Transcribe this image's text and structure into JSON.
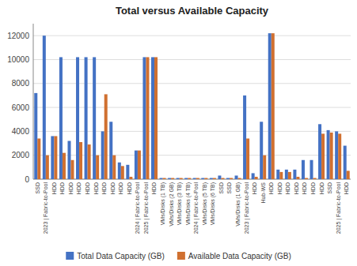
{
  "chart_data": {
    "type": "bar",
    "title": "Total versus Available Capacity",
    "categories": [
      "SSD",
      "2023 | Fabric-to-Pool",
      "HDD",
      "HDD",
      "HDD",
      "HDD",
      "HDD",
      "HDD",
      "HDD",
      "HDD",
      "HDD",
      "HDD",
      "2024 | Fabric-to-Pool",
      "2025 | Fabric-to-Pool",
      "HDD",
      "VMs/Disks (1 TB)",
      "VMs/Disks (2 GB)",
      "VMs/Disks (3 TB)",
      "VMs/Disks (4 TB)",
      "2024 | Fabric-to-Pool",
      "VMs/Disks (5 TB)",
      "VMs/Disks (6 TB)",
      "SSD",
      "SSD",
      "VMs/Disks (1 GB)",
      "2023 | Fabric-to-Pool",
      "HDD",
      "Hub-WS",
      "HDD",
      "HDD",
      "HDD",
      "HDD",
      "HDD",
      "HDD",
      "HDD",
      "SSD",
      "2025 | Fabric-to-Pool",
      "HDD"
    ],
    "series": [
      {
        "name": "Total Data Capacity (GB)",
        "color": "#4472c4",
        "values": [
          7200,
          12000,
          3600,
          10200,
          3200,
          10200,
          10200,
          10200,
          4000,
          4800,
          1400,
          1200,
          2400,
          10200,
          10200,
          100,
          100,
          100,
          100,
          100,
          100,
          100,
          300,
          100,
          300,
          7000,
          500,
          4800,
          12200,
          800,
          800,
          800,
          1600,
          1600,
          4600,
          4100,
          4000,
          2800
        ]
      },
      {
        "name": "Available Data Capacity (GB)",
        "color": "#d07030",
        "values": [
          3400,
          2000,
          3600,
          2200,
          1600,
          3100,
          2900,
          2000,
          7100,
          2000,
          1100,
          200,
          2400,
          10200,
          10200,
          100,
          100,
          100,
          100,
          100,
          100,
          100,
          100,
          100,
          100,
          3400,
          200,
          2000,
          12200,
          600,
          600,
          200,
          100,
          100,
          3800,
          3900,
          3800,
          700
        ]
      }
    ],
    "ylim": [
      0,
      13000
    ],
    "yticks": [
      0,
      2000,
      4000,
      6000,
      8000,
      10000,
      12000
    ],
    "grid": true,
    "legend": "bottom"
  }
}
